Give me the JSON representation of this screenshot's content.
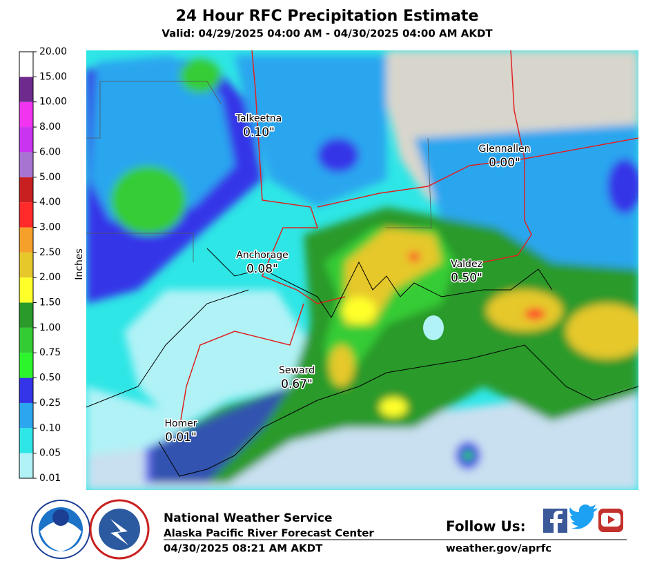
{
  "header": {
    "title": "24 Hour RFC Precipitation Estimate",
    "subtitle": "Valid: 04/29/2025 04:00 AM - 04/30/2025 04:00 AM AKDT"
  },
  "colorbar": {
    "axis_label": "Inches",
    "ticks": [
      "0.01",
      "0.05",
      "0.10",
      "0.25",
      "0.50",
      "0.75",
      "1.00",
      "1.50",
      "2.00",
      "2.50",
      "3.00",
      "4.00",
      "5.00",
      "6.00",
      "8.00",
      "10.00",
      "15.00",
      "20.00"
    ],
    "colors": [
      "#b0f2f6",
      "#2ee6e6",
      "#2ba6ef",
      "#3434e8",
      "#2cf52c",
      "#34cc34",
      "#2a9a2a",
      "#ffff2a",
      "#e6c82a",
      "#f5a02a",
      "#ff2a2a",
      "#c82020",
      "#a874d2",
      "#c834f0",
      "#f034f0",
      "#6e2a8c",
      "#ffffff"
    ]
  },
  "places": [
    {
      "name": "Talkeetna",
      "amount": "0.10\""
    },
    {
      "name": "Glennallen",
      "amount": "0.00\""
    },
    {
      "name": "Anchorage",
      "amount": "0.08\""
    },
    {
      "name": "Valdez",
      "amount": "0.50\""
    },
    {
      "name": "Seward",
      "amount": "0.67\""
    },
    {
      "name": "Homer",
      "amount": "0.01\""
    }
  ],
  "footer": {
    "agency": "National Weather Service",
    "office": "Alaska Pacific River Forecast Center",
    "timestamp": "04/30/2025 08:21 AM AKDT",
    "follow": "Follow Us:",
    "url": "weather.gov/aprfc"
  }
}
